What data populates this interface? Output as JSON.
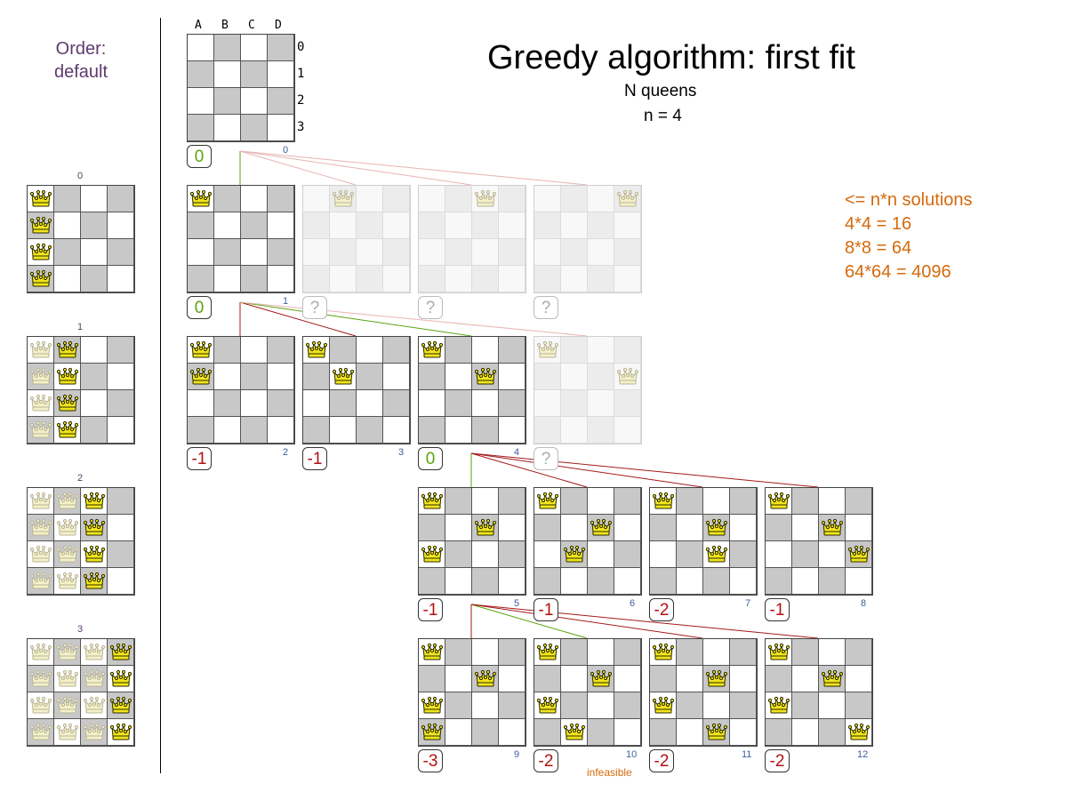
{
  "title": "Greedy algorithm: first fit",
  "subtitle": "N queens",
  "n_line": "n = 4",
  "order": {
    "line1": "Order:",
    "line2": "default"
  },
  "solutions": [
    "<= n*n solutions",
    "4*4 = 16",
    "8*8 = 64",
    "64*64 = 4096"
  ],
  "columns": [
    "A",
    "B",
    "C",
    "D"
  ],
  "rows": [
    "0",
    "1",
    "2",
    "3"
  ],
  "infeasible_label": "infeasible",
  "colors": {
    "dark_cell": "#c8c8c8",
    "light_cell": "#ffffff",
    "ghost_dark": "#ececec",
    "ghost_light": "#f8f8f8",
    "ok": "#5ba30f",
    "bad": "#b41010",
    "accent": "#d46a0c"
  },
  "nodes": [
    {
      "id": 0,
      "index": "0",
      "score": "0",
      "status": "ok",
      "queens": []
    },
    {
      "id": 1,
      "index": "1",
      "score": "0",
      "status": "ok",
      "queens": [
        [
          0,
          0
        ]
      ]
    },
    {
      "id": "g1",
      "index": "",
      "score": "?",
      "status": "unknown",
      "ghost": true,
      "queens": [
        [
          0,
          1
        ]
      ]
    },
    {
      "id": "g2",
      "index": "",
      "score": "?",
      "status": "unknown",
      "ghost": true,
      "queens": [
        [
          0,
          2
        ]
      ]
    },
    {
      "id": "g3",
      "index": "",
      "score": "?",
      "status": "unknown",
      "ghost": true,
      "queens": [
        [
          0,
          3
        ]
      ]
    },
    {
      "id": 2,
      "index": "2",
      "score": "-1",
      "status": "bad",
      "queens": [
        [
          0,
          0
        ],
        [
          1,
          0
        ]
      ]
    },
    {
      "id": 3,
      "index": "3",
      "score": "-1",
      "status": "bad",
      "queens": [
        [
          0,
          0
        ],
        [
          1,
          1
        ]
      ]
    },
    {
      "id": 4,
      "index": "4",
      "score": "0",
      "status": "ok",
      "queens": [
        [
          0,
          0
        ],
        [
          1,
          2
        ]
      ]
    },
    {
      "id": "g4",
      "index": "",
      "score": "?",
      "status": "unknown",
      "ghost": true,
      "queens": [
        [
          0,
          0
        ],
        [
          1,
          3
        ]
      ]
    },
    {
      "id": 5,
      "index": "5",
      "score": "-1",
      "status": "bad",
      "queens": [
        [
          0,
          0
        ],
        [
          1,
          2
        ],
        [
          2,
          0
        ]
      ]
    },
    {
      "id": 6,
      "index": "6",
      "score": "-1",
      "status": "bad",
      "queens": [
        [
          0,
          0
        ],
        [
          1,
          2
        ],
        [
          2,
          1
        ]
      ]
    },
    {
      "id": 7,
      "index": "7",
      "score": "-2",
      "status": "bad",
      "queens": [
        [
          0,
          0
        ],
        [
          1,
          2
        ],
        [
          2,
          2
        ]
      ]
    },
    {
      "id": 8,
      "index": "8",
      "score": "-1",
      "status": "bad",
      "queens": [
        [
          0,
          0
        ],
        [
          1,
          2
        ],
        [
          2,
          3
        ]
      ]
    },
    {
      "id": 9,
      "index": "9",
      "score": "-3",
      "status": "bad",
      "queens": [
        [
          0,
          0
        ],
        [
          1,
          2
        ],
        [
          2,
          0
        ],
        [
          3,
          0
        ]
      ]
    },
    {
      "id": 10,
      "index": "10",
      "score": "-2",
      "status": "bad",
      "infeasible": true,
      "queens": [
        [
          0,
          0
        ],
        [
          1,
          2
        ],
        [
          2,
          0
        ],
        [
          3,
          1
        ]
      ]
    },
    {
      "id": 11,
      "index": "11",
      "score": "-2",
      "status": "bad",
      "queens": [
        [
          0,
          0
        ],
        [
          1,
          2
        ],
        [
          2,
          0
        ],
        [
          3,
          2
        ]
      ]
    },
    {
      "id": 12,
      "index": "12",
      "score": "-2",
      "status": "bad",
      "queens": [
        [
          0,
          0
        ],
        [
          1,
          2
        ],
        [
          2,
          0
        ],
        [
          3,
          3
        ]
      ]
    }
  ],
  "left_panels": [
    {
      "index": "0",
      "queens": [
        [
          0,
          0,
          "full"
        ],
        [
          0,
          1,
          "full"
        ],
        [
          0,
          2,
          "full"
        ],
        [
          0,
          3,
          "full"
        ]
      ]
    },
    {
      "index": "1",
      "queens": [
        [
          0,
          0,
          "faint"
        ],
        [
          0,
          1,
          "faint"
        ],
        [
          0,
          2,
          "faint"
        ],
        [
          0,
          3,
          "faint"
        ],
        [
          1,
          0,
          "full"
        ],
        [
          1,
          1,
          "full"
        ],
        [
          1,
          2,
          "full"
        ],
        [
          1,
          3,
          "full"
        ]
      ]
    },
    {
      "index": "2",
      "queens": [
        [
          0,
          0,
          "faint"
        ],
        [
          0,
          1,
          "faint"
        ],
        [
          0,
          2,
          "faint"
        ],
        [
          0,
          3,
          "faint"
        ],
        [
          1,
          0,
          "faint"
        ],
        [
          1,
          1,
          "faint"
        ],
        [
          1,
          2,
          "faint"
        ],
        [
          1,
          3,
          "faint"
        ],
        [
          2,
          0,
          "full"
        ],
        [
          2,
          1,
          "full"
        ],
        [
          2,
          2,
          "full"
        ],
        [
          2,
          3,
          "full"
        ]
      ]
    },
    {
      "index": "3",
      "queens": [
        [
          0,
          0,
          "faint"
        ],
        [
          0,
          1,
          "faint"
        ],
        [
          0,
          2,
          "faint"
        ],
        [
          0,
          3,
          "faint"
        ],
        [
          1,
          0,
          "faint"
        ],
        [
          1,
          1,
          "faint"
        ],
        [
          1,
          2,
          "faint"
        ],
        [
          1,
          3,
          "faint"
        ],
        [
          2,
          0,
          "faint"
        ],
        [
          2,
          1,
          "faint"
        ],
        [
          2,
          2,
          "faint"
        ],
        [
          2,
          3,
          "faint"
        ],
        [
          3,
          0,
          "full"
        ],
        [
          3,
          1,
          "full"
        ],
        [
          3,
          2,
          "full"
        ],
        [
          3,
          3,
          "full"
        ]
      ]
    }
  ]
}
